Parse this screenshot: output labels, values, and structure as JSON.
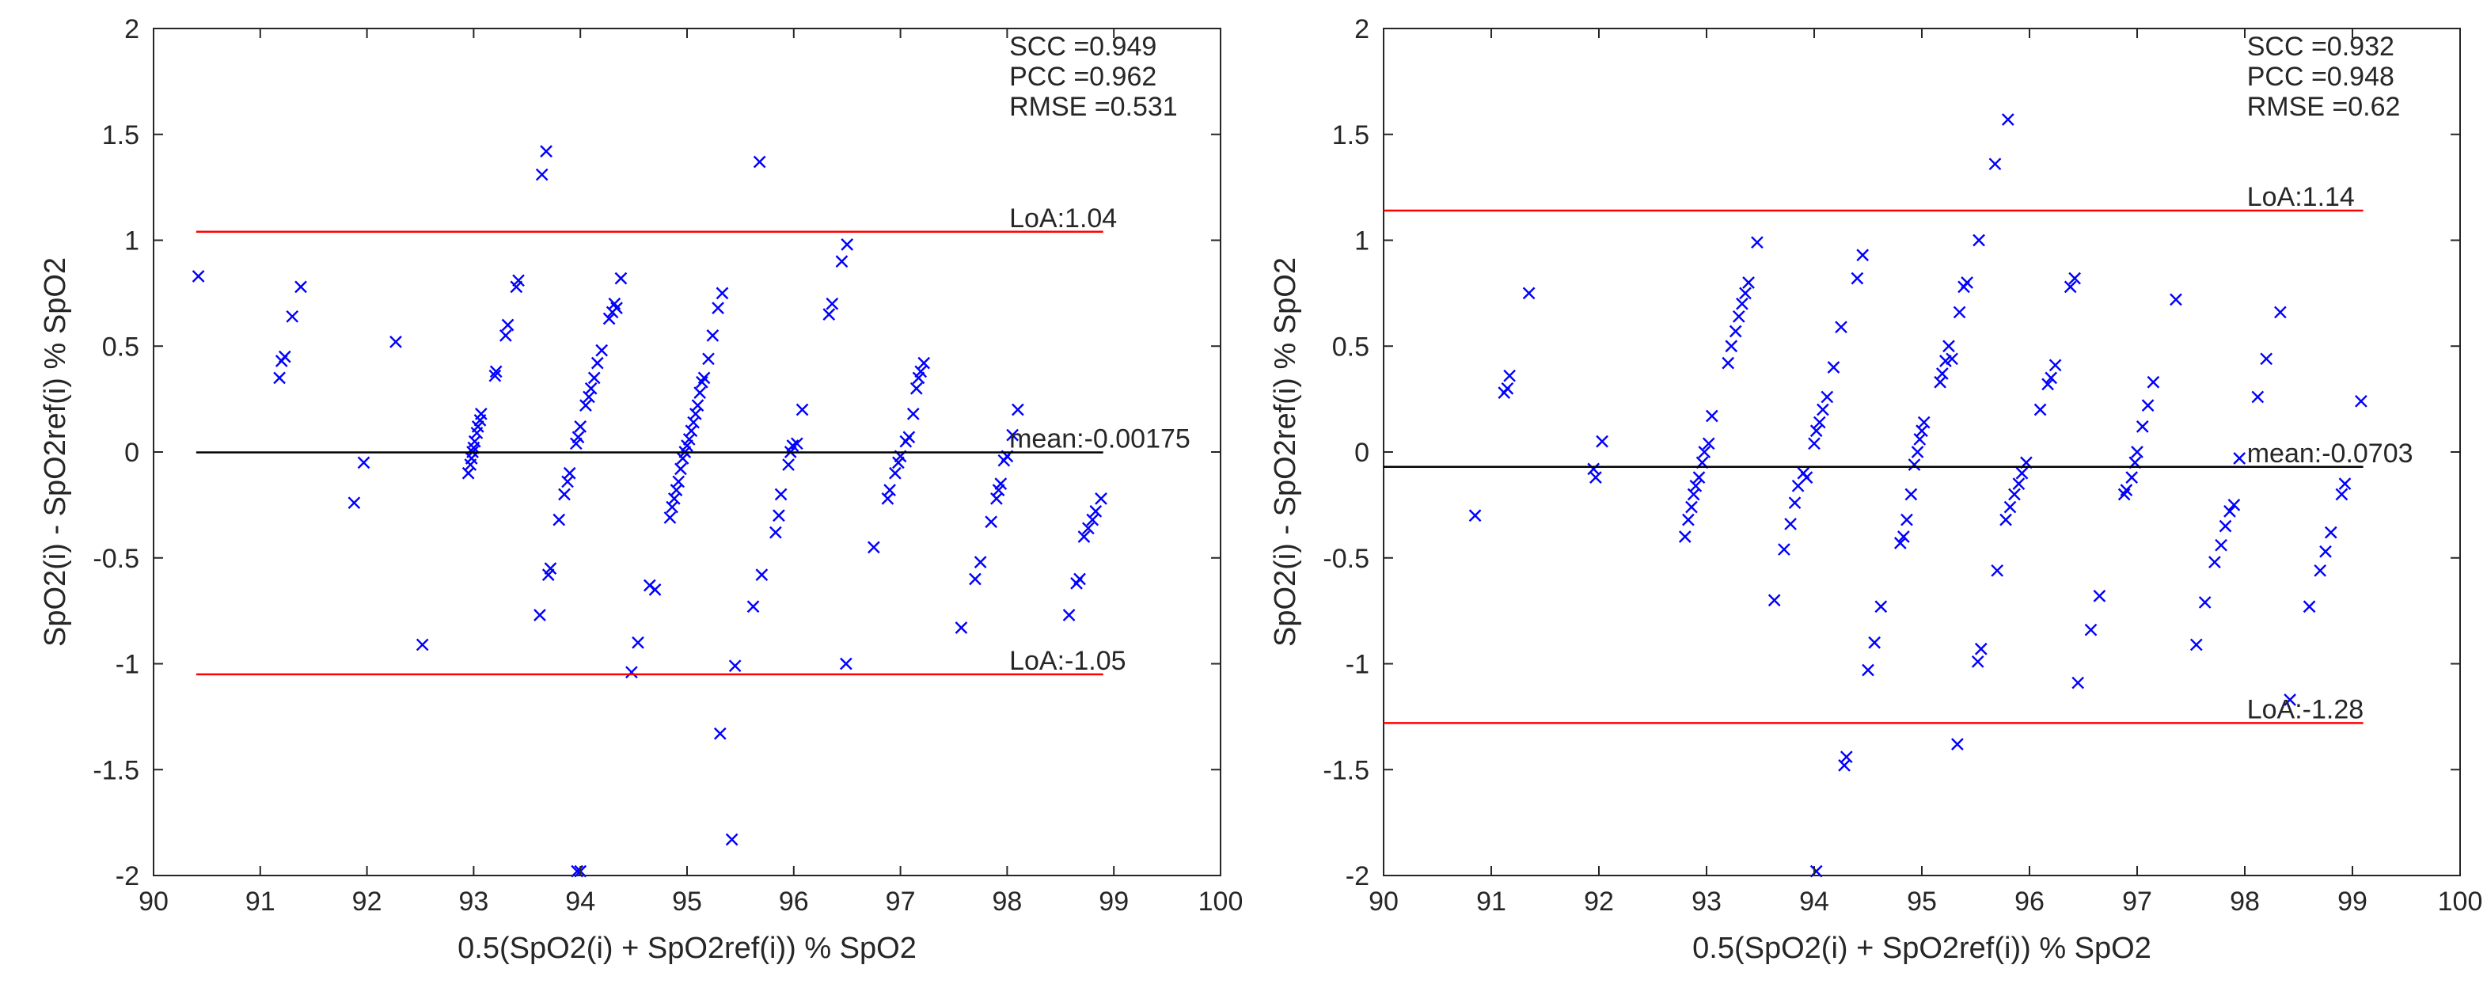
{
  "colors": {
    "points": "#0000ff",
    "loa": "#ff0000",
    "mean": "#000000",
    "axis": "#262626"
  },
  "chart_data": [
    {
      "type": "scatter",
      "title": "",
      "xlabel": "0.5(SpO2(i) + SpO2ref(i)) % SpO2",
      "ylabel": "SpO2(i) - SpO2ref(i) % SpO2",
      "xlim": [
        90,
        100
      ],
      "ylim": [
        -2,
        2
      ],
      "xticks": [
        90,
        91,
        92,
        93,
        94,
        95,
        96,
        97,
        98,
        99,
        100
      ],
      "yticks": [
        -2,
        -1.5,
        -1,
        -0.5,
        0,
        0.5,
        1,
        1.5,
        2
      ],
      "stats": [
        "SCC =0.949",
        "PCC =0.962",
        "RMSE =0.531"
      ],
      "lines": [
        {
          "name": "LoA upper",
          "y": 1.04,
          "x": [
            90.4,
            98.9
          ],
          "label": "LoA:1.04",
          "color": "loa"
        },
        {
          "name": "mean",
          "y": -0.00175,
          "x": [
            90.4,
            98.9
          ],
          "label": "mean:-0.00175",
          "color": "mean"
        },
        {
          "name": "LoA lower",
          "y": -1.05,
          "x": [
            90.4,
            98.9
          ],
          "label": "LoA:-1.05",
          "color": "loa"
        }
      ],
      "points": [
        [
          90.42,
          0.83
        ],
        [
          91.18,
          0.35
        ],
        [
          91.2,
          0.43
        ],
        [
          91.23,
          0.45
        ],
        [
          91.3,
          0.64
        ],
        [
          91.38,
          0.78
        ],
        [
          91.88,
          -0.24
        ],
        [
          91.97,
          -0.05
        ],
        [
          92.27,
          0.52
        ],
        [
          92.52,
          -0.91
        ],
        [
          92.95,
          -0.1
        ],
        [
          92.97,
          -0.06
        ],
        [
          92.98,
          -0.03
        ],
        [
          92.99,
          0.0
        ],
        [
          93.0,
          0.02
        ],
        [
          93.01,
          0.05
        ],
        [
          93.03,
          0.09
        ],
        [
          93.04,
          0.12
        ],
        [
          93.06,
          0.15
        ],
        [
          93.07,
          0.18
        ],
        [
          93.2,
          0.36
        ],
        [
          93.21,
          0.38
        ],
        [
          93.3,
          0.55
        ],
        [
          93.32,
          0.6
        ],
        [
          93.4,
          0.78
        ],
        [
          93.42,
          0.81
        ],
        [
          93.62,
          -0.77
        ],
        [
          93.64,
          1.31
        ],
        [
          93.68,
          1.42
        ],
        [
          93.7,
          -0.58
        ],
        [
          93.72,
          -0.55
        ],
        [
          93.8,
          -0.32
        ],
        [
          93.85,
          -0.2
        ],
        [
          93.88,
          -0.14
        ],
        [
          93.9,
          -0.1
        ],
        [
          93.96,
          0.04
        ],
        [
          93.98,
          0.07
        ],
        [
          94.0,
          0.12
        ],
        [
          94.05,
          0.22
        ],
        [
          94.08,
          0.26
        ],
        [
          94.1,
          0.3
        ],
        [
          94.13,
          0.35
        ],
        [
          94.16,
          0.42
        ],
        [
          94.2,
          0.48
        ],
        [
          94.27,
          0.63
        ],
        [
          94.3,
          0.66
        ],
        [
          94.32,
          0.7
        ],
        [
          94.34,
          0.68
        ],
        [
          94.38,
          0.82
        ],
        [
          93.97,
          -1.98
        ],
        [
          94.0,
          -1.98
        ],
        [
          94.48,
          -1.04
        ],
        [
          94.54,
          -0.9
        ],
        [
          94.65,
          -0.63
        ],
        [
          94.7,
          -0.65
        ],
        [
          94.84,
          -0.31
        ],
        [
          94.86,
          -0.26
        ],
        [
          94.88,
          -0.22
        ],
        [
          94.9,
          -0.18
        ],
        [
          94.92,
          -0.14
        ],
        [
          94.94,
          -0.08
        ],
        [
          94.96,
          -0.03
        ],
        [
          94.98,
          0.0
        ],
        [
          95.0,
          0.03
        ],
        [
          95.02,
          0.06
        ],
        [
          95.04,
          0.1
        ],
        [
          95.06,
          0.14
        ],
        [
          95.08,
          0.18
        ],
        [
          95.1,
          0.22
        ],
        [
          95.12,
          0.28
        ],
        [
          95.14,
          0.33
        ],
        [
          95.16,
          0.35
        ],
        [
          95.2,
          0.44
        ],
        [
          95.24,
          0.55
        ],
        [
          95.29,
          0.68
        ],
        [
          95.33,
          0.75
        ],
        [
          95.31,
          -1.33
        ],
        [
          95.42,
          -1.83
        ],
        [
          95.45,
          -1.01
        ],
        [
          95.62,
          -0.73
        ],
        [
          95.7,
          -0.58
        ],
        [
          95.68,
          1.37
        ],
        [
          95.83,
          -0.38
        ],
        [
          95.86,
          -0.3
        ],
        [
          95.88,
          -0.2
        ],
        [
          95.95,
          -0.06
        ],
        [
          95.97,
          0.0
        ],
        [
          95.99,
          0.03
        ],
        [
          96.03,
          0.04
        ],
        [
          96.08,
          0.2
        ],
        [
          96.33,
          0.65
        ],
        [
          96.36,
          0.7
        ],
        [
          96.45,
          0.9
        ],
        [
          96.5,
          0.98
        ],
        [
          96.49,
          -1.0
        ],
        [
          96.75,
          -0.45
        ],
        [
          96.88,
          -0.22
        ],
        [
          96.9,
          -0.18
        ],
        [
          96.95,
          -0.1
        ],
        [
          96.98,
          -0.05
        ],
        [
          97.0,
          -0.02
        ],
        [
          97.05,
          0.05
        ],
        [
          97.08,
          0.07
        ],
        [
          97.12,
          0.18
        ],
        [
          97.15,
          0.3
        ],
        [
          97.17,
          0.35
        ],
        [
          97.19,
          0.38
        ],
        [
          97.22,
          0.42
        ],
        [
          97.57,
          -0.83
        ],
        [
          97.7,
          -0.6
        ],
        [
          97.75,
          -0.52
        ],
        [
          97.85,
          -0.33
        ],
        [
          97.9,
          -0.22
        ],
        [
          97.92,
          -0.18
        ],
        [
          97.94,
          -0.15
        ],
        [
          97.97,
          -0.04
        ],
        [
          98.0,
          -0.02
        ],
        [
          98.05,
          0.08
        ],
        [
          98.1,
          0.2
        ],
        [
          98.58,
          -0.77
        ],
        [
          98.65,
          -0.62
        ],
        [
          98.68,
          -0.6
        ],
        [
          98.72,
          -0.4
        ],
        [
          98.76,
          -0.36
        ],
        [
          98.8,
          -0.32
        ],
        [
          98.83,
          -0.28
        ],
        [
          98.88,
          -0.22
        ]
      ]
    },
    {
      "type": "scatter",
      "title": "",
      "xlabel": "0.5(SpO2(i) + SpO2ref(i)) % SpO2",
      "ylabel": "SpO2(i) - SpO2ref(i) % SpO2",
      "xlim": [
        90,
        100
      ],
      "ylim": [
        -2,
        2
      ],
      "xticks": [
        90,
        91,
        92,
        93,
        94,
        95,
        96,
        97,
        98,
        99,
        100
      ],
      "yticks": [
        -2,
        -1.5,
        -1,
        -0.5,
        0,
        0.5,
        1,
        1.5,
        2
      ],
      "stats": [
        "SCC =0.932",
        "PCC =0.948",
        "RMSE =0.62"
      ],
      "lines": [
        {
          "name": "LoA upper",
          "y": 1.14,
          "x": [
            90.0,
            99.1
          ],
          "label": "LoA:1.14",
          "color": "loa"
        },
        {
          "name": "mean",
          "y": -0.0703,
          "x": [
            90.0,
            99.1
          ],
          "label": "mean:-0.0703",
          "color": "mean"
        },
        {
          "name": "LoA lower",
          "y": -1.28,
          "x": [
            90.0,
            99.1
          ],
          "label": "LoA:-1.28",
          "color": "loa"
        }
      ],
      "points": [
        [
          90.85,
          -0.3
        ],
        [
          91.12,
          0.28
        ],
        [
          91.15,
          0.3
        ],
        [
          91.17,
          0.36
        ],
        [
          91.35,
          0.75
        ],
        [
          91.95,
          -0.08
        ],
        [
          91.97,
          -0.12
        ],
        [
          92.03,
          0.05
        ],
        [
          92.8,
          -0.4
        ],
        [
          92.83,
          -0.32
        ],
        [
          92.86,
          -0.26
        ],
        [
          92.88,
          -0.2
        ],
        [
          92.9,
          -0.16
        ],
        [
          92.93,
          -0.12
        ],
        [
          92.96,
          -0.05
        ],
        [
          92.98,
          0.0
        ],
        [
          93.02,
          0.04
        ],
        [
          93.05,
          0.17
        ],
        [
          93.2,
          0.42
        ],
        [
          93.23,
          0.5
        ],
        [
          93.27,
          0.57
        ],
        [
          93.3,
          0.64
        ],
        [
          93.33,
          0.7
        ],
        [
          93.36,
          0.75
        ],
        [
          93.39,
          0.8
        ],
        [
          93.47,
          0.99
        ],
        [
          93.63,
          -0.7
        ],
        [
          93.72,
          -0.46
        ],
        [
          93.78,
          -0.34
        ],
        [
          93.82,
          -0.24
        ],
        [
          93.85,
          -0.16
        ],
        [
          93.9,
          -0.1
        ],
        [
          93.93,
          -0.12
        ],
        [
          94.0,
          0.04
        ],
        [
          94.02,
          0.1
        ],
        [
          94.05,
          0.14
        ],
        [
          94.08,
          0.2
        ],
        [
          94.12,
          0.26
        ],
        [
          94.18,
          0.4
        ],
        [
          94.25,
          0.59
        ],
        [
          94.4,
          0.82
        ],
        [
          94.45,
          0.93
        ],
        [
          94.28,
          -1.48
        ],
        [
          94.3,
          -1.44
        ],
        [
          94.02,
          -1.98
        ],
        [
          94.5,
          -1.03
        ],
        [
          94.56,
          -0.9
        ],
        [
          94.62,
          -0.73
        ],
        [
          94.8,
          -0.43
        ],
        [
          94.83,
          -0.4
        ],
        [
          94.86,
          -0.32
        ],
        [
          94.9,
          -0.2
        ],
        [
          94.93,
          -0.06
        ],
        [
          94.96,
          0.0
        ],
        [
          94.98,
          0.06
        ],
        [
          95.0,
          0.1
        ],
        [
          95.02,
          0.14
        ],
        [
          95.17,
          0.33
        ],
        [
          95.19,
          0.37
        ],
        [
          95.22,
          0.43
        ],
        [
          95.25,
          0.5
        ],
        [
          95.28,
          0.44
        ],
        [
          95.35,
          0.66
        ],
        [
          95.39,
          0.78
        ],
        [
          95.42,
          0.8
        ],
        [
          95.53,
          1.0
        ],
        [
          95.33,
          -1.38
        ],
        [
          95.52,
          -0.99
        ],
        [
          95.55,
          -0.93
        ],
        [
          95.7,
          -0.56
        ],
        [
          95.78,
          -0.32
        ],
        [
          95.82,
          -0.26
        ],
        [
          95.86,
          -0.2
        ],
        [
          95.9,
          -0.15
        ],
        [
          95.93,
          -0.1
        ],
        [
          95.97,
          -0.05
        ],
        [
          95.68,
          1.36
        ],
        [
          95.8,
          1.57
        ],
        [
          96.1,
          0.2
        ],
        [
          96.17,
          0.32
        ],
        [
          96.2,
          0.35
        ],
        [
          96.24,
          0.41
        ],
        [
          96.38,
          0.78
        ],
        [
          96.42,
          0.82
        ],
        [
          96.45,
          -1.09
        ],
        [
          96.57,
          -0.84
        ],
        [
          96.65,
          -0.68
        ],
        [
          96.88,
          -0.2
        ],
        [
          96.9,
          -0.18
        ],
        [
          96.95,
          -0.12
        ],
        [
          96.98,
          -0.05
        ],
        [
          97.0,
          0.0
        ],
        [
          97.05,
          0.12
        ],
        [
          97.1,
          0.22
        ],
        [
          97.15,
          0.33
        ],
        [
          97.36,
          0.72
        ],
        [
          97.55,
          -0.91
        ],
        [
          97.63,
          -0.71
        ],
        [
          97.72,
          -0.52
        ],
        [
          97.78,
          -0.44
        ],
        [
          97.82,
          -0.35
        ],
        [
          97.86,
          -0.28
        ],
        [
          97.9,
          -0.25
        ],
        [
          97.95,
          -0.03
        ],
        [
          98.12,
          0.26
        ],
        [
          98.2,
          0.44
        ],
        [
          98.33,
          0.66
        ],
        [
          98.42,
          -1.17
        ],
        [
          98.6,
          -0.73
        ],
        [
          98.7,
          -0.56
        ],
        [
          98.75,
          -0.47
        ],
        [
          98.8,
          -0.38
        ],
        [
          98.9,
          -0.2
        ],
        [
          98.93,
          -0.15
        ],
        [
          99.08,
          0.24
        ]
      ]
    }
  ]
}
